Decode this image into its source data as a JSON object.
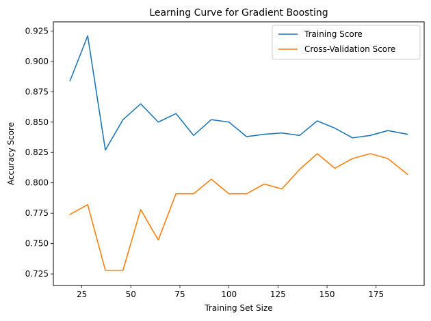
{
  "chart_data": {
    "type": "line",
    "title": "Learning Curve for Gradient Boosting",
    "xlabel": "Training Set Size",
    "ylabel": "Accuracy Score",
    "xlim": [
      10.5,
      199.5
    ],
    "ylim": [
      0.7155,
      0.9325
    ],
    "xticks": [
      25,
      50,
      75,
      100,
      125,
      150,
      175
    ],
    "yticks": [
      0.725,
      0.75,
      0.775,
      0.8,
      0.825,
      0.85,
      0.875,
      0.9,
      0.925
    ],
    "ytick_labels": [
      "0.725",
      "0.750",
      "0.775",
      "0.800",
      "0.825",
      "0.850",
      "0.875",
      "0.900",
      "0.925"
    ],
    "grid": false,
    "legend_position": "upper right",
    "x": [
      19,
      28,
      37,
      46,
      55,
      64,
      73,
      82,
      91,
      100,
      109,
      118,
      127,
      136,
      145,
      154,
      163,
      172,
      181,
      191
    ],
    "series": [
      {
        "name": "Training Score",
        "color": "#1f77b4",
        "values": [
          0.884,
          0.921,
          0.827,
          0.852,
          0.865,
          0.85,
          0.857,
          0.839,
          0.852,
          0.85,
          0.838,
          0.84,
          0.841,
          0.839,
          0.851,
          0.845,
          0.837,
          0.839,
          0.843,
          0.84
        ]
      },
      {
        "name": "Cross-Validation Score",
        "color": "#ff7f0e",
        "values": [
          0.774,
          0.782,
          0.728,
          0.728,
          0.778,
          0.753,
          0.791,
          0.791,
          0.803,
          0.791,
          0.791,
          0.799,
          0.795,
          0.811,
          0.824,
          0.812,
          0.82,
          0.824,
          0.82,
          0.807
        ]
      }
    ]
  }
}
